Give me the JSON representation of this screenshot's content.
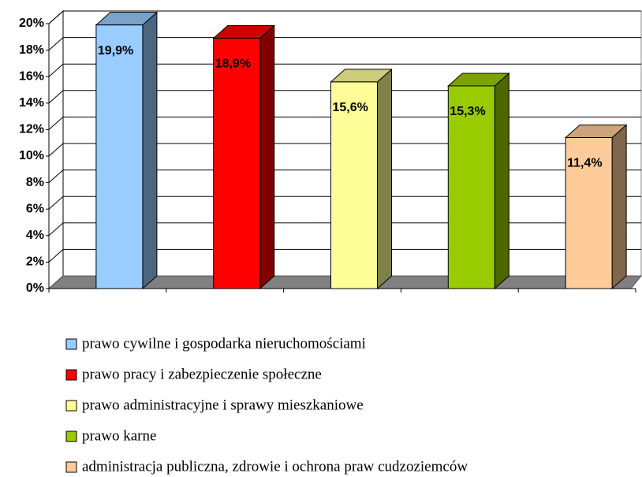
{
  "chart_data": {
    "type": "bar3d",
    "series": [
      {
        "name": "prawo cywilne i gospodarka nieruchomościami",
        "color": "#99ccff",
        "values": [
          19.9
        ],
        "value_labels": [
          "19,9%"
        ]
      },
      {
        "name": "prawo pracy i zabezpieczenie społeczne",
        "color": "#ff0000",
        "values": [
          18.9
        ],
        "value_labels": [
          "18,9%"
        ]
      },
      {
        "name": "prawo administracyjne i sprawy mieszkaniowe",
        "color": "#ffff99",
        "values": [
          15.6
        ],
        "value_labels": [
          "15,6%"
        ]
      },
      {
        "name": "prawo karne",
        "color": "#99cc00",
        "values": [
          15.3
        ],
        "value_labels": [
          "15,3%"
        ]
      },
      {
        "name": "administracja publiczna, zdrowie i ochrona praw cudzoziemców",
        "color": "#ffcc99",
        "values": [
          11.4
        ],
        "value_labels": [
          "11,4%"
        ]
      }
    ],
    "ylim": [
      0,
      20
    ],
    "yticks": [
      {
        "value": 0,
        "label": "0%"
      },
      {
        "value": 2,
        "label": "2%"
      },
      {
        "value": 4,
        "label": "4%"
      },
      {
        "value": 6,
        "label": "6%"
      },
      {
        "value": 8,
        "label": "8%"
      },
      {
        "value": 10,
        "label": "10%"
      },
      {
        "value": 12,
        "label": "12%"
      },
      {
        "value": 14,
        "label": "14%"
      },
      {
        "value": 16,
        "label": "16%"
      },
      {
        "value": 18,
        "label": "18%"
      },
      {
        "value": 20,
        "label": "20%"
      }
    ],
    "grid": true,
    "legend": "bottom"
  }
}
